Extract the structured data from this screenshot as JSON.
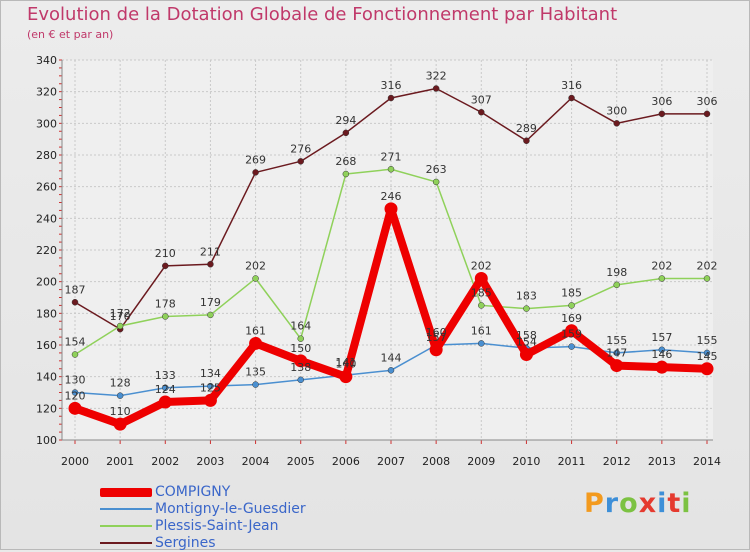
{
  "title": "Evolution de la Dotation Globale de Fonctionnement par Habitant",
  "subtitle": "(en € et par an)",
  "logo_text": "Proxiti",
  "chart_data": {
    "type": "line",
    "title": "Evolution de la Dotation Globale de Fonctionnement par Habitant",
    "subtitle": "(en € et par an)",
    "categories": [
      "2000",
      "2001",
      "2002",
      "2003",
      "2004",
      "2005",
      "2006",
      "2007",
      "2008",
      "2009",
      "2010",
      "2011",
      "2012",
      "2013",
      "2014"
    ],
    "ylim": [
      100,
      340
    ],
    "yticks": [
      100,
      120,
      140,
      160,
      180,
      200,
      220,
      240,
      260,
      280,
      300,
      320,
      340
    ],
    "grid": true,
    "legend_position": "bottom-left",
    "series": [
      {
        "name": "Sergines",
        "color": "#6b1a1f",
        "values": [
          187,
          170,
          210,
          211,
          269,
          276,
          294,
          316,
          322,
          307,
          289,
          316,
          300,
          306,
          306
        ],
        "labels": [
          "187",
          "170",
          "210",
          "211",
          "269",
          "276",
          "294",
          "316",
          "322",
          "307",
          "289",
          "316",
          "300",
          "306",
          "306"
        ]
      },
      {
        "name": "Plessis-Saint-Jean",
        "color": "#8fd15a",
        "values": [
          154,
          172,
          178,
          179,
          202,
          164,
          268,
          271,
          263,
          185,
          183,
          185,
          198,
          202,
          202
        ],
        "labels": [
          "154",
          "172",
          "178",
          "179",
          "202",
          "164",
          "268",
          "271",
          "263",
          "185",
          "183",
          "185",
          "198",
          "202",
          "202"
        ]
      },
      {
        "name": "Montigny-le-Guesdier",
        "color": "#4a8fd0",
        "values": [
          130,
          128,
          133,
          134,
          135,
          138,
          141,
          144,
          160,
          161,
          158,
          159,
          155,
          157,
          155
        ],
        "labels": [
          "130",
          "128",
          "133",
          "134",
          "135",
          "138",
          "141",
          "144",
          "160",
          "161",
          "158",
          "159",
          "155",
          "157",
          "155"
        ]
      },
      {
        "name": "COMPIGNY",
        "color": "#ee0000",
        "values": [
          120,
          110,
          124,
          125,
          161,
          150,
          140,
          246,
          157,
          202,
          154,
          169,
          147,
          146,
          145
        ],
        "labels": [
          "120",
          "110",
          "124",
          "125",
          "161",
          "150",
          "140",
          "246",
          "157",
          "202",
          "154",
          "169",
          "147",
          "146",
          "145"
        ]
      }
    ]
  },
  "legend": [
    {
      "label": "COMPIGNY",
      "color": "#ee0000",
      "thickness": 9
    },
    {
      "label": "Montigny-le-Guesdier",
      "color": "#4a8fd0",
      "thickness": 2
    },
    {
      "label": "Plessis-Saint-Jean",
      "color": "#8fd15a",
      "thickness": 2
    },
    {
      "label": "Sergines",
      "color": "#6b1a1f",
      "thickness": 2
    }
  ]
}
